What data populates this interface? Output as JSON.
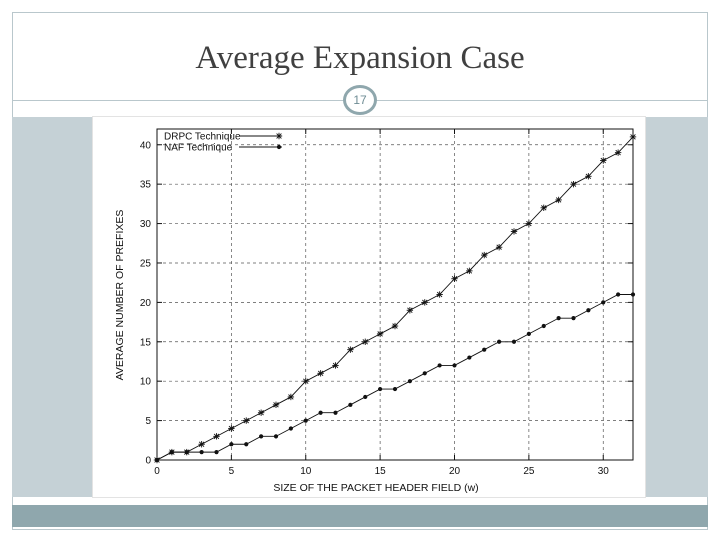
{
  "slide": {
    "title": "Average Expansion Case",
    "number": "17",
    "colors": {
      "accent": "#8fa7ad",
      "title": "#404040",
      "panel": "#c5d1d6"
    }
  },
  "chart_data": {
    "type": "line",
    "xlabel": "SIZE OF THE PACKET HEADER FIELD (w)",
    "ylabel": "AVERAGE NUMBER OF PREFIXES",
    "xlim": [
      0,
      32
    ],
    "ylim": [
      0,
      42
    ],
    "xticks": [
      0,
      5,
      10,
      15,
      20,
      25,
      30
    ],
    "yticks": [
      0,
      5,
      10,
      15,
      20,
      25,
      30,
      35,
      40
    ],
    "grid": true,
    "legend": "top-left",
    "x": [
      0,
      1,
      2,
      3,
      4,
      5,
      6,
      7,
      8,
      9,
      10,
      11,
      12,
      13,
      14,
      15,
      16,
      17,
      18,
      19,
      20,
      21,
      22,
      23,
      24,
      25,
      26,
      27,
      28,
      29,
      30,
      31,
      32
    ],
    "series": [
      {
        "name": "DRPC Technique",
        "marker": "star",
        "values": [
          0,
          1,
          1,
          2,
          3,
          4,
          5,
          6,
          7,
          8,
          10,
          11,
          12,
          14,
          15,
          16,
          17,
          19,
          20,
          21,
          23,
          24,
          26,
          27,
          29,
          30,
          32,
          33,
          35,
          36,
          38,
          39,
          41
        ]
      },
      {
        "name": "NAF Technique",
        "marker": "dot",
        "values": [
          0,
          1,
          1,
          1,
          1,
          2,
          2,
          3,
          3,
          4,
          5,
          6,
          6,
          7,
          8,
          9,
          9,
          10,
          11,
          12,
          12,
          13,
          14,
          15,
          15,
          16,
          17,
          18,
          18,
          19,
          20,
          21,
          21
        ]
      }
    ]
  }
}
